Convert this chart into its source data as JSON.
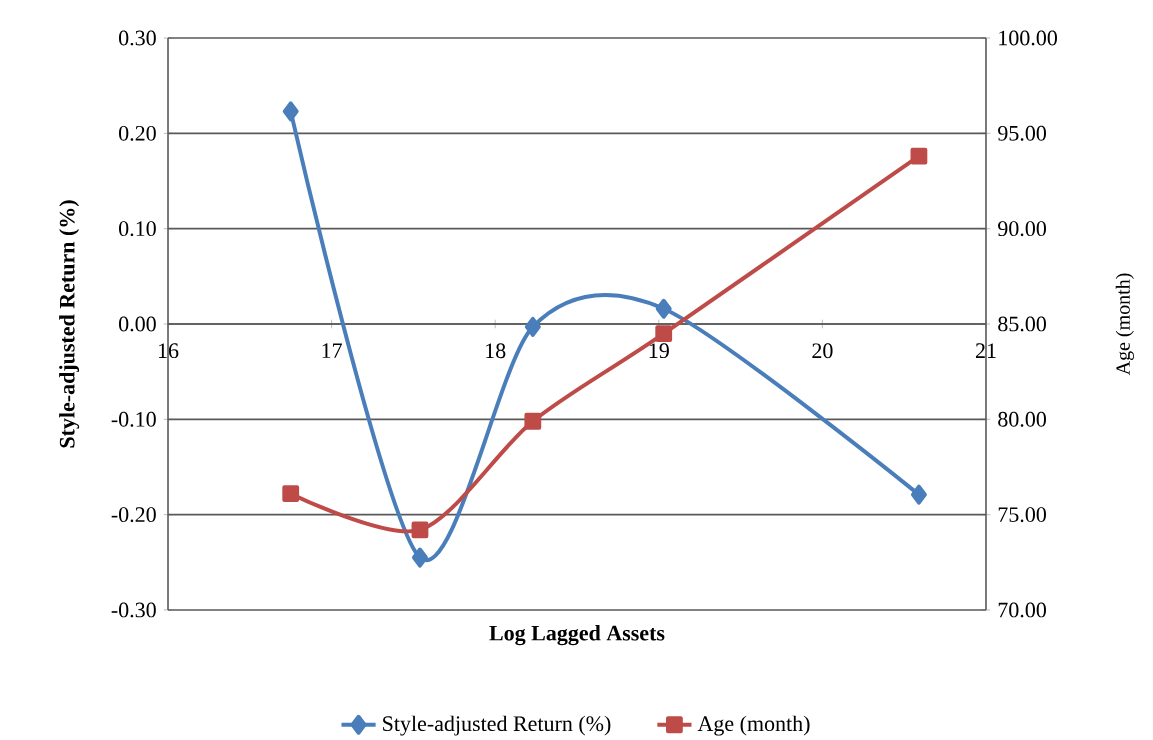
{
  "chart_data": {
    "type": "line",
    "xlabel": "Log Lagged Assets",
    "ylabel": "Style-adjusted Return (%)",
    "y2label": "Age (month)",
    "x": [
      16.75,
      17.54,
      18.23,
      19.03,
      20.59
    ],
    "series": [
      {
        "name": "Style-adjusted Return (%)",
        "color": "#4a7ebb",
        "marker": "diamond",
        "values": [
          0.223,
          -0.245,
          -0.003,
          0.016,
          -0.179
        ]
      },
      {
        "name": "Age (month)",
        "color": "#be4b48",
        "marker": "square",
        "axis": "y2",
        "values": [
          76.1,
          74.2,
          79.9,
          84.5,
          93.8
        ]
      }
    ],
    "xlim": [
      16,
      21
    ],
    "xticks": [
      16,
      17,
      18,
      19,
      20,
      21
    ],
    "ylim": [
      -0.3,
      0.3
    ],
    "yticks": [
      {
        "value": -0.3,
        "label": "-0.30"
      },
      {
        "value": -0.2,
        "label": "-0.20"
      },
      {
        "value": -0.1,
        "label": "-0.10"
      },
      {
        "value": 0,
        "label": "0.00"
      },
      {
        "value": 0.1,
        "label": "0.10"
      },
      {
        "value": 0.2,
        "label": "0.20"
      },
      {
        "value": 0.3,
        "label": "0.30"
      }
    ],
    "y2lim": [
      70,
      100
    ],
    "y2ticks": [
      {
        "value": 70,
        "label": "70.00"
      },
      {
        "value": 75,
        "label": "75.00"
      },
      {
        "value": 80,
        "label": "80.00"
      },
      {
        "value": 85,
        "label": "85.00"
      },
      {
        "value": 90,
        "label": "90.00"
      },
      {
        "value": 95,
        "label": "95.00"
      },
      {
        "value": 100,
        "label": "100.00"
      }
    ],
    "grid": "y",
    "legend": "bottom",
    "line_style": "solid"
  }
}
